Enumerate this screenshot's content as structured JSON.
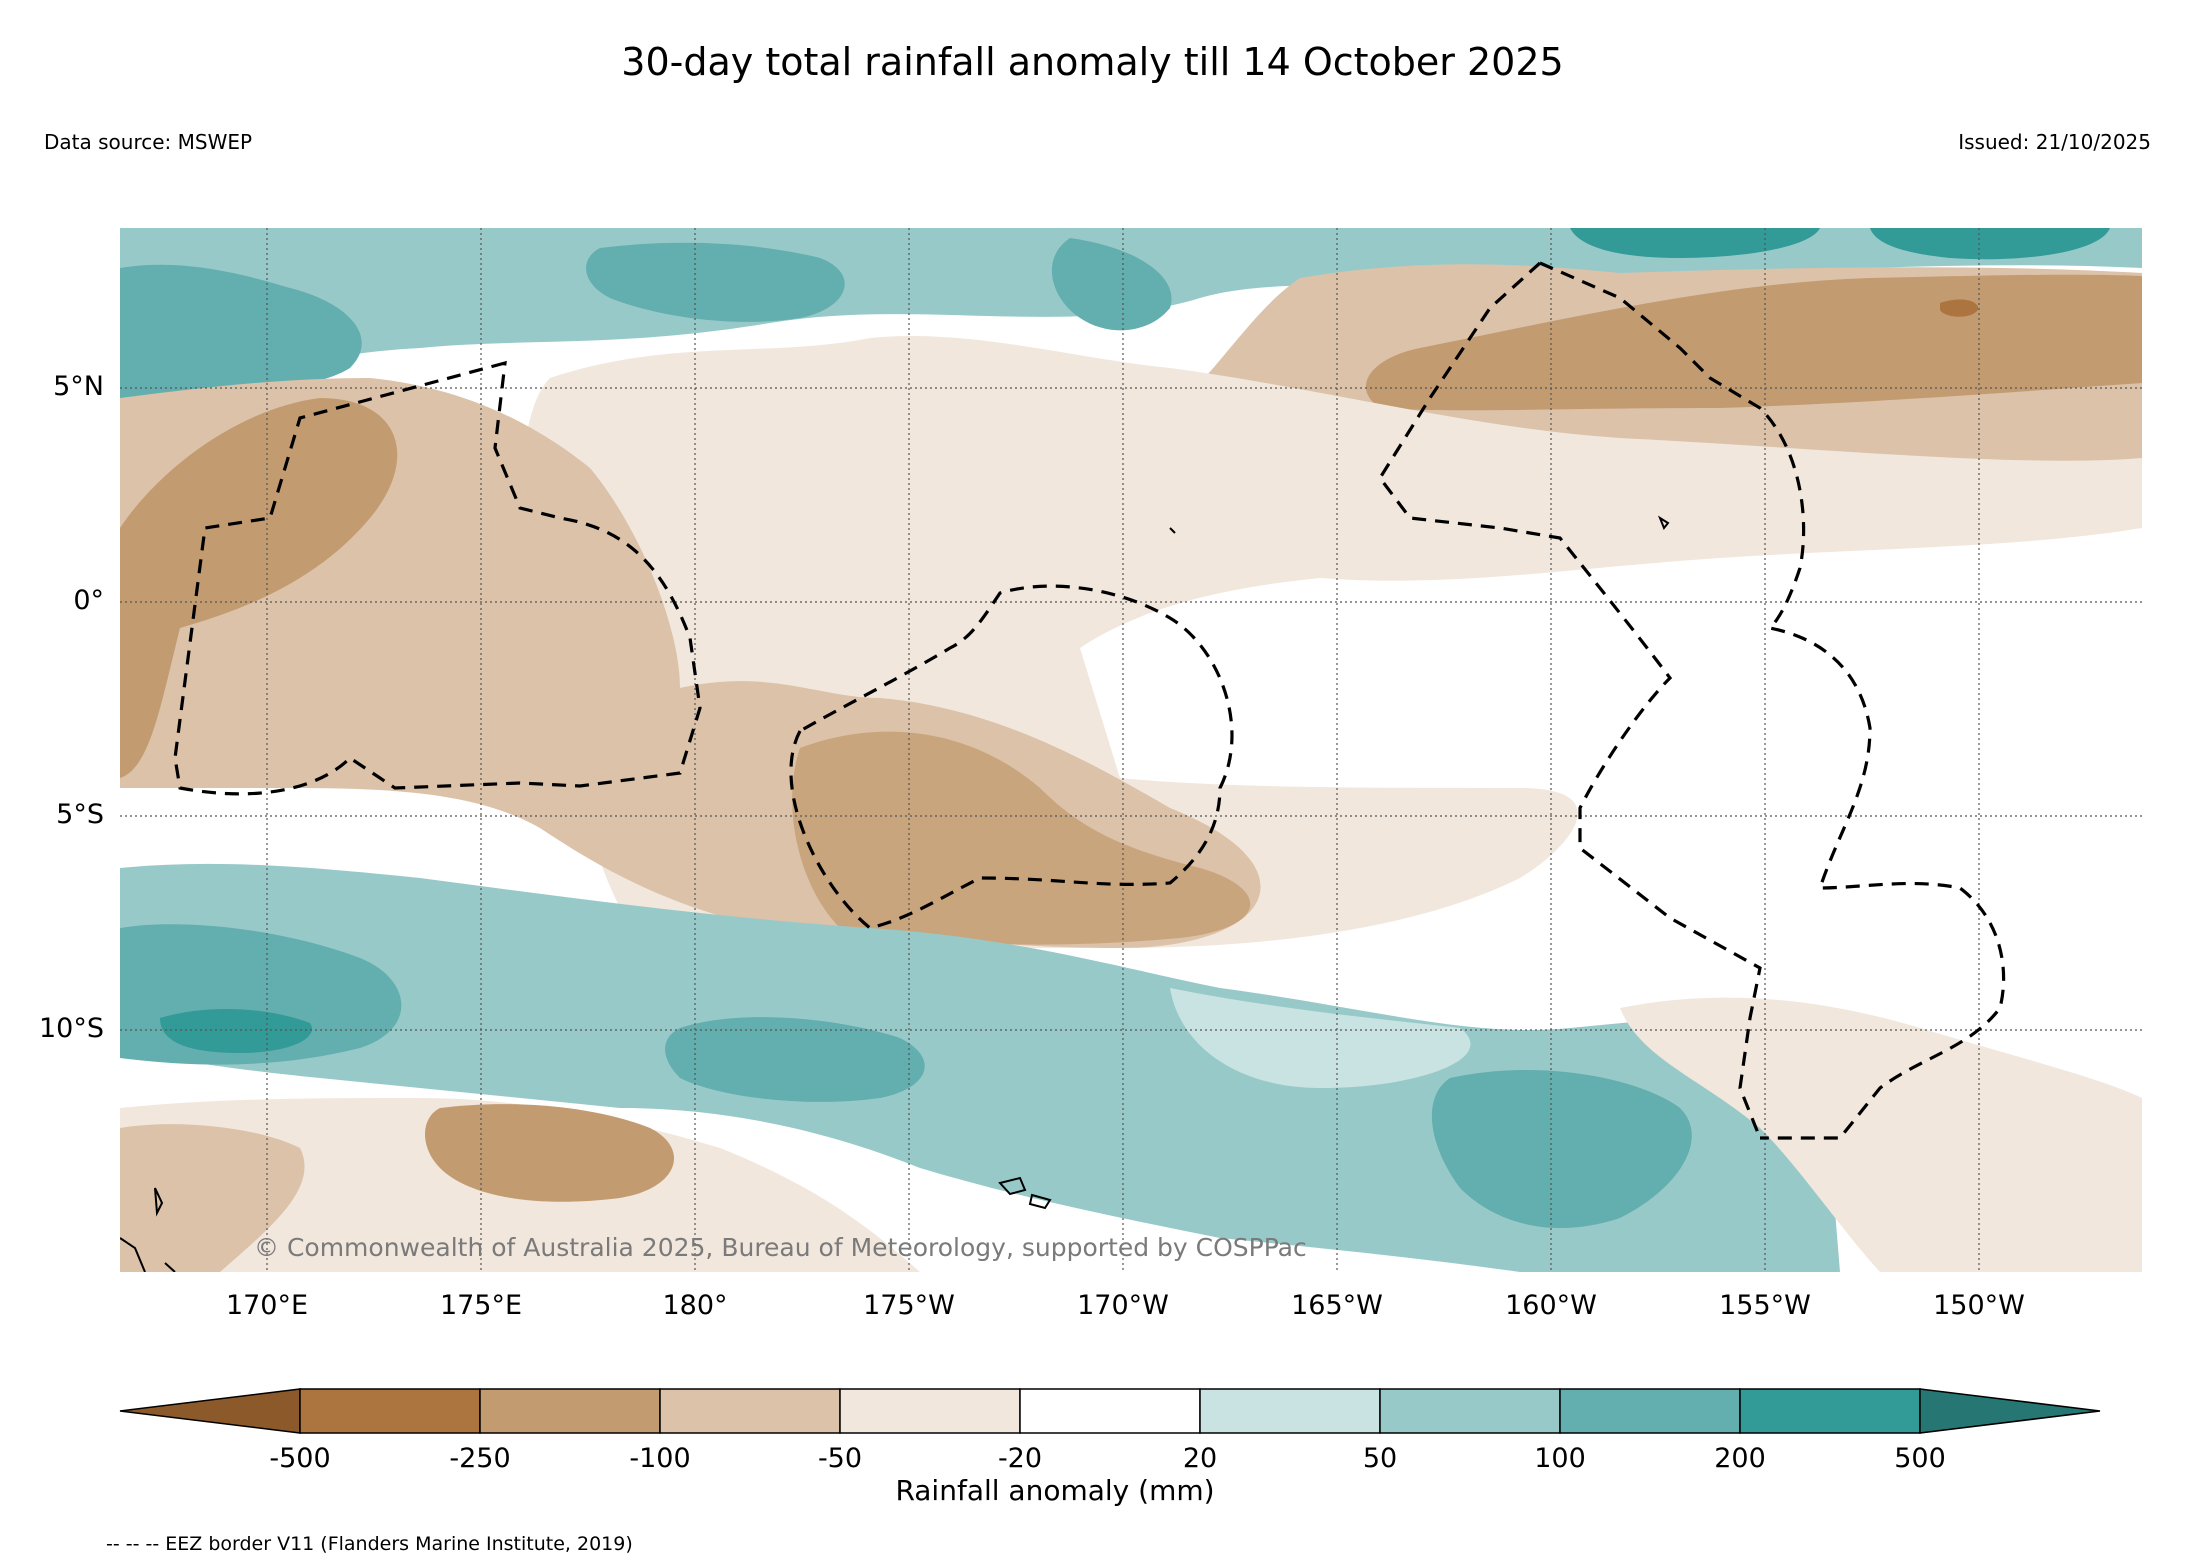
{
  "title": "30-day total rainfall anomaly till 14 October 2025",
  "data_source": "Data source: MSWEP",
  "issued": "Issued: 21/10/2025",
  "copyright": "© Commonwealth of Australia 2025, Bureau of Meteorology, supported by COSPPac",
  "map": {
    "lon_range_deg_east": [
      166.5,
      213.5
    ],
    "lat_range_deg": [
      -15.5,
      8.8
    ],
    "x_ticks": [
      {
        "lon": 170,
        "label": "170°E"
      },
      {
        "lon": 175,
        "label": "175°E"
      },
      {
        "lon": 180,
        "label": "180°"
      },
      {
        "lon": 185,
        "label": "175°W"
      },
      {
        "lon": 190,
        "label": "170°W"
      },
      {
        "lon": 195,
        "label": "165°W"
      },
      {
        "lon": 200,
        "label": "160°W"
      },
      {
        "lon": 205,
        "label": "155°W"
      },
      {
        "lon": 210,
        "label": "150°W"
      }
    ],
    "y_ticks": [
      {
        "lat": 5,
        "label": "5°N"
      },
      {
        "lat": 0,
        "label": "0°"
      },
      {
        "lat": -5,
        "label": "5°S"
      },
      {
        "lat": -10,
        "label": "10°S"
      }
    ],
    "grid": true
  },
  "colorbar": {
    "title": "Rainfall anomaly (mm)",
    "boundaries": [
      "-500",
      "-250",
      "-100",
      "-50",
      "-20",
      "20",
      "50",
      "100",
      "200",
      "500"
    ],
    "colors": [
      "#8c5a2a",
      "#ac743e",
      "#c39b70",
      "#dbc2a9",
      "#f1e7dd",
      "#ffffff",
      "#c9e3e3",
      "#98c9c9",
      "#63aeae",
      "#329a97",
      "#267674"
    ]
  },
  "legend_note": "-- -- -- EEZ border V11 (Flanders Marine Institute, 2019)"
}
